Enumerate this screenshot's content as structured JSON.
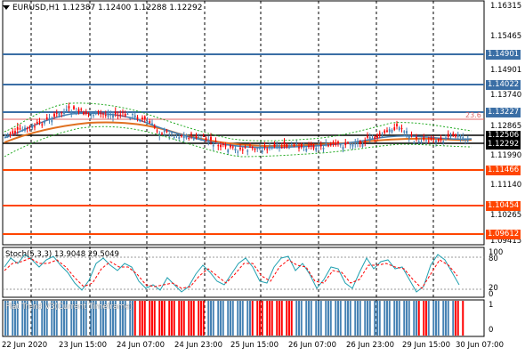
{
  "chart": {
    "symbol_line": "EURUSD,H1  1.12387 1.12400 1.12288 1.12292",
    "price_axis_labels": [
      "1.16315",
      "1.15465",
      "1.14901",
      "1.13740",
      "1.13227",
      "1.12865",
      "1.12506",
      "1.12292",
      "1.11990",
      "1.11466",
      "1.11140",
      "1.10454",
      "1.10265",
      "1.09612",
      "1.09415"
    ],
    "price_tags": [
      {
        "label": "1.14901",
        "color": "#3a6ea5"
      },
      {
        "label": "1.14022",
        "color": "#3a6ea5"
      },
      {
        "label": "1.13227",
        "color": "#3a6ea5"
      },
      {
        "label": "1.12506",
        "color": "#000000"
      },
      {
        "label": "1.12292",
        "color": "#000000"
      },
      {
        "label": "1.11466",
        "color": "#ff4500"
      },
      {
        "label": "1.10454",
        "color": "#ff4500"
      },
      {
        "label": "1.09612",
        "color": "#ff4500"
      }
    ],
    "fib_label": "23.6",
    "time_labels": [
      "22 Jun 2020",
      "23 Jun 15:00",
      "24 Jun 07:00",
      "24 Jun 23:00",
      "25 Jun 15:00",
      "26 Jun 07:00",
      "26 Jun 23:00",
      "29 Jun 15:00",
      "30 Jun 07:00"
    ],
    "stoch": {
      "title": "Stoch(5,3,3) 13.9048 29.5049",
      "axis_labels": [
        "100",
        "80",
        "20",
        "0"
      ]
    },
    "flat_trend": {
      "title": "Flat Trend V3(Current Timeframe)",
      "axis_labels": [
        "1",
        "0"
      ]
    },
    "colors": {
      "bull": "#4682b4",
      "bear": "#ff0000",
      "support": "#ff4500",
      "resistance": "#3a6ea5",
      "ma_fast": "#4682b4",
      "ma_slow": "#e07020",
      "stoch_main": "#20a0b0",
      "stoch_signal": "#ff0000"
    }
  }
}
